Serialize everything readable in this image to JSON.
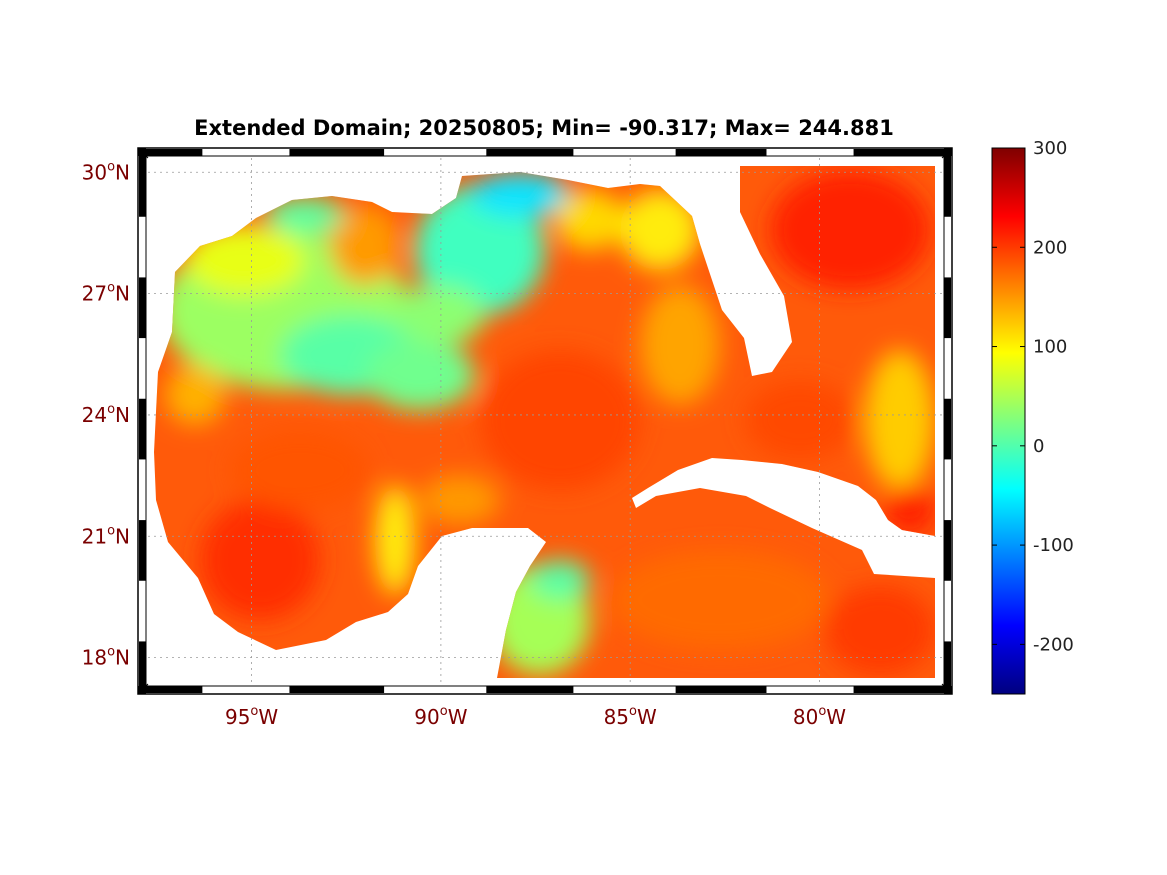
{
  "figure": {
    "title": "Extended Domain; 20250805; Min= -90.317; Max= 244.881",
    "date": "20250805",
    "min_value": -90.317,
    "max_value": 244.881
  },
  "map": {
    "lon_range": [
      -98.0,
      -76.5
    ],
    "lat_range": [
      17.1,
      30.6
    ],
    "lat_ticks": [
      {
        "value": 30,
        "num": "30",
        "hemi": "N"
      },
      {
        "value": 27,
        "num": "27",
        "hemi": "N"
      },
      {
        "value": 24,
        "num": "24",
        "hemi": "N"
      },
      {
        "value": 21,
        "num": "21",
        "hemi": "N"
      },
      {
        "value": 18,
        "num": "18",
        "hemi": "N"
      }
    ],
    "lon_ticks": [
      {
        "value": -95,
        "num": "95",
        "hemi": "W"
      },
      {
        "value": -90,
        "num": "90",
        "hemi": "W"
      },
      {
        "value": -85,
        "num": "85",
        "hemi": "W"
      },
      {
        "value": -80,
        "num": "80",
        "hemi": "W"
      }
    ],
    "degree_symbol": "o",
    "grid": true,
    "land_color": "#ffffff"
  },
  "colorbar": {
    "colormap": "jet",
    "range": [
      -250,
      300
    ],
    "ticks": [
      {
        "value": 300,
        "label": "300"
      },
      {
        "value": 200,
        "label": "200"
      },
      {
        "value": 100,
        "label": "100"
      },
      {
        "value": 0,
        "label": "0"
      },
      {
        "value": -100,
        "label": "-100"
      },
      {
        "value": -200,
        "label": "-200"
      }
    ]
  }
}
